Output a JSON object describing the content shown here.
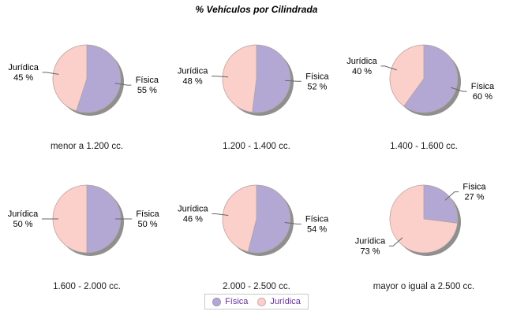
{
  "title": "% Vehículos por Cilindrada",
  "legend": {
    "position": "bottom",
    "items": [
      {
        "label": "Física",
        "color": "#b2a8d3"
      },
      {
        "label": "Jurídica",
        "color": "#fbcfca"
      }
    ]
  },
  "style": {
    "background": "#ffffff",
    "shadow_color": "#8f8f8f",
    "slice_stroke": "#b3a29e",
    "leader_color": "#666666",
    "label_color": "#000000",
    "legend_text_color": "#663399"
  },
  "chart_data": {
    "type": "pie",
    "title": "% Vehículos por Cilindrada",
    "legend": [
      "Física",
      "Jurídica"
    ],
    "legend_position": "bottom",
    "series_colors": {
      "Física": "#b2a8d3",
      "Jurídica": "#fbcfca"
    },
    "charts": [
      {
        "category": "menor a 1.200 cc.",
        "slices": [
          {
            "name": "Física",
            "value": 55,
            "label": "55 %"
          },
          {
            "name": "Jurídica",
            "value": 45,
            "label": "45 %"
          }
        ]
      },
      {
        "category": "1.200 - 1.400 cc.",
        "slices": [
          {
            "name": "Física",
            "value": 52,
            "label": "52 %"
          },
          {
            "name": "Jurídica",
            "value": 48,
            "label": "48 %"
          }
        ]
      },
      {
        "category": "1.400 - 1.600 cc.",
        "slices": [
          {
            "name": "Física",
            "value": 60,
            "label": "60 %"
          },
          {
            "name": "Jurídica",
            "value": 40,
            "label": "40 %"
          }
        ]
      },
      {
        "category": "1.600 - 2.000 cc.",
        "slices": [
          {
            "name": "Física",
            "value": 50,
            "label": "50 %"
          },
          {
            "name": "Jurídica",
            "value": 50,
            "label": "50 %"
          }
        ]
      },
      {
        "category": "2.000 - 2.500 cc.",
        "slices": [
          {
            "name": "Física",
            "value": 54,
            "label": "54 %"
          },
          {
            "name": "Jurídica",
            "value": 46,
            "label": "46 %"
          }
        ]
      },
      {
        "category": "mayor o igual a 2.500 cc.",
        "slices": [
          {
            "name": "Física",
            "value": 27,
            "label": "27 %"
          },
          {
            "name": "Jurídica",
            "value": 73,
            "label": "73 %"
          }
        ]
      }
    ]
  }
}
